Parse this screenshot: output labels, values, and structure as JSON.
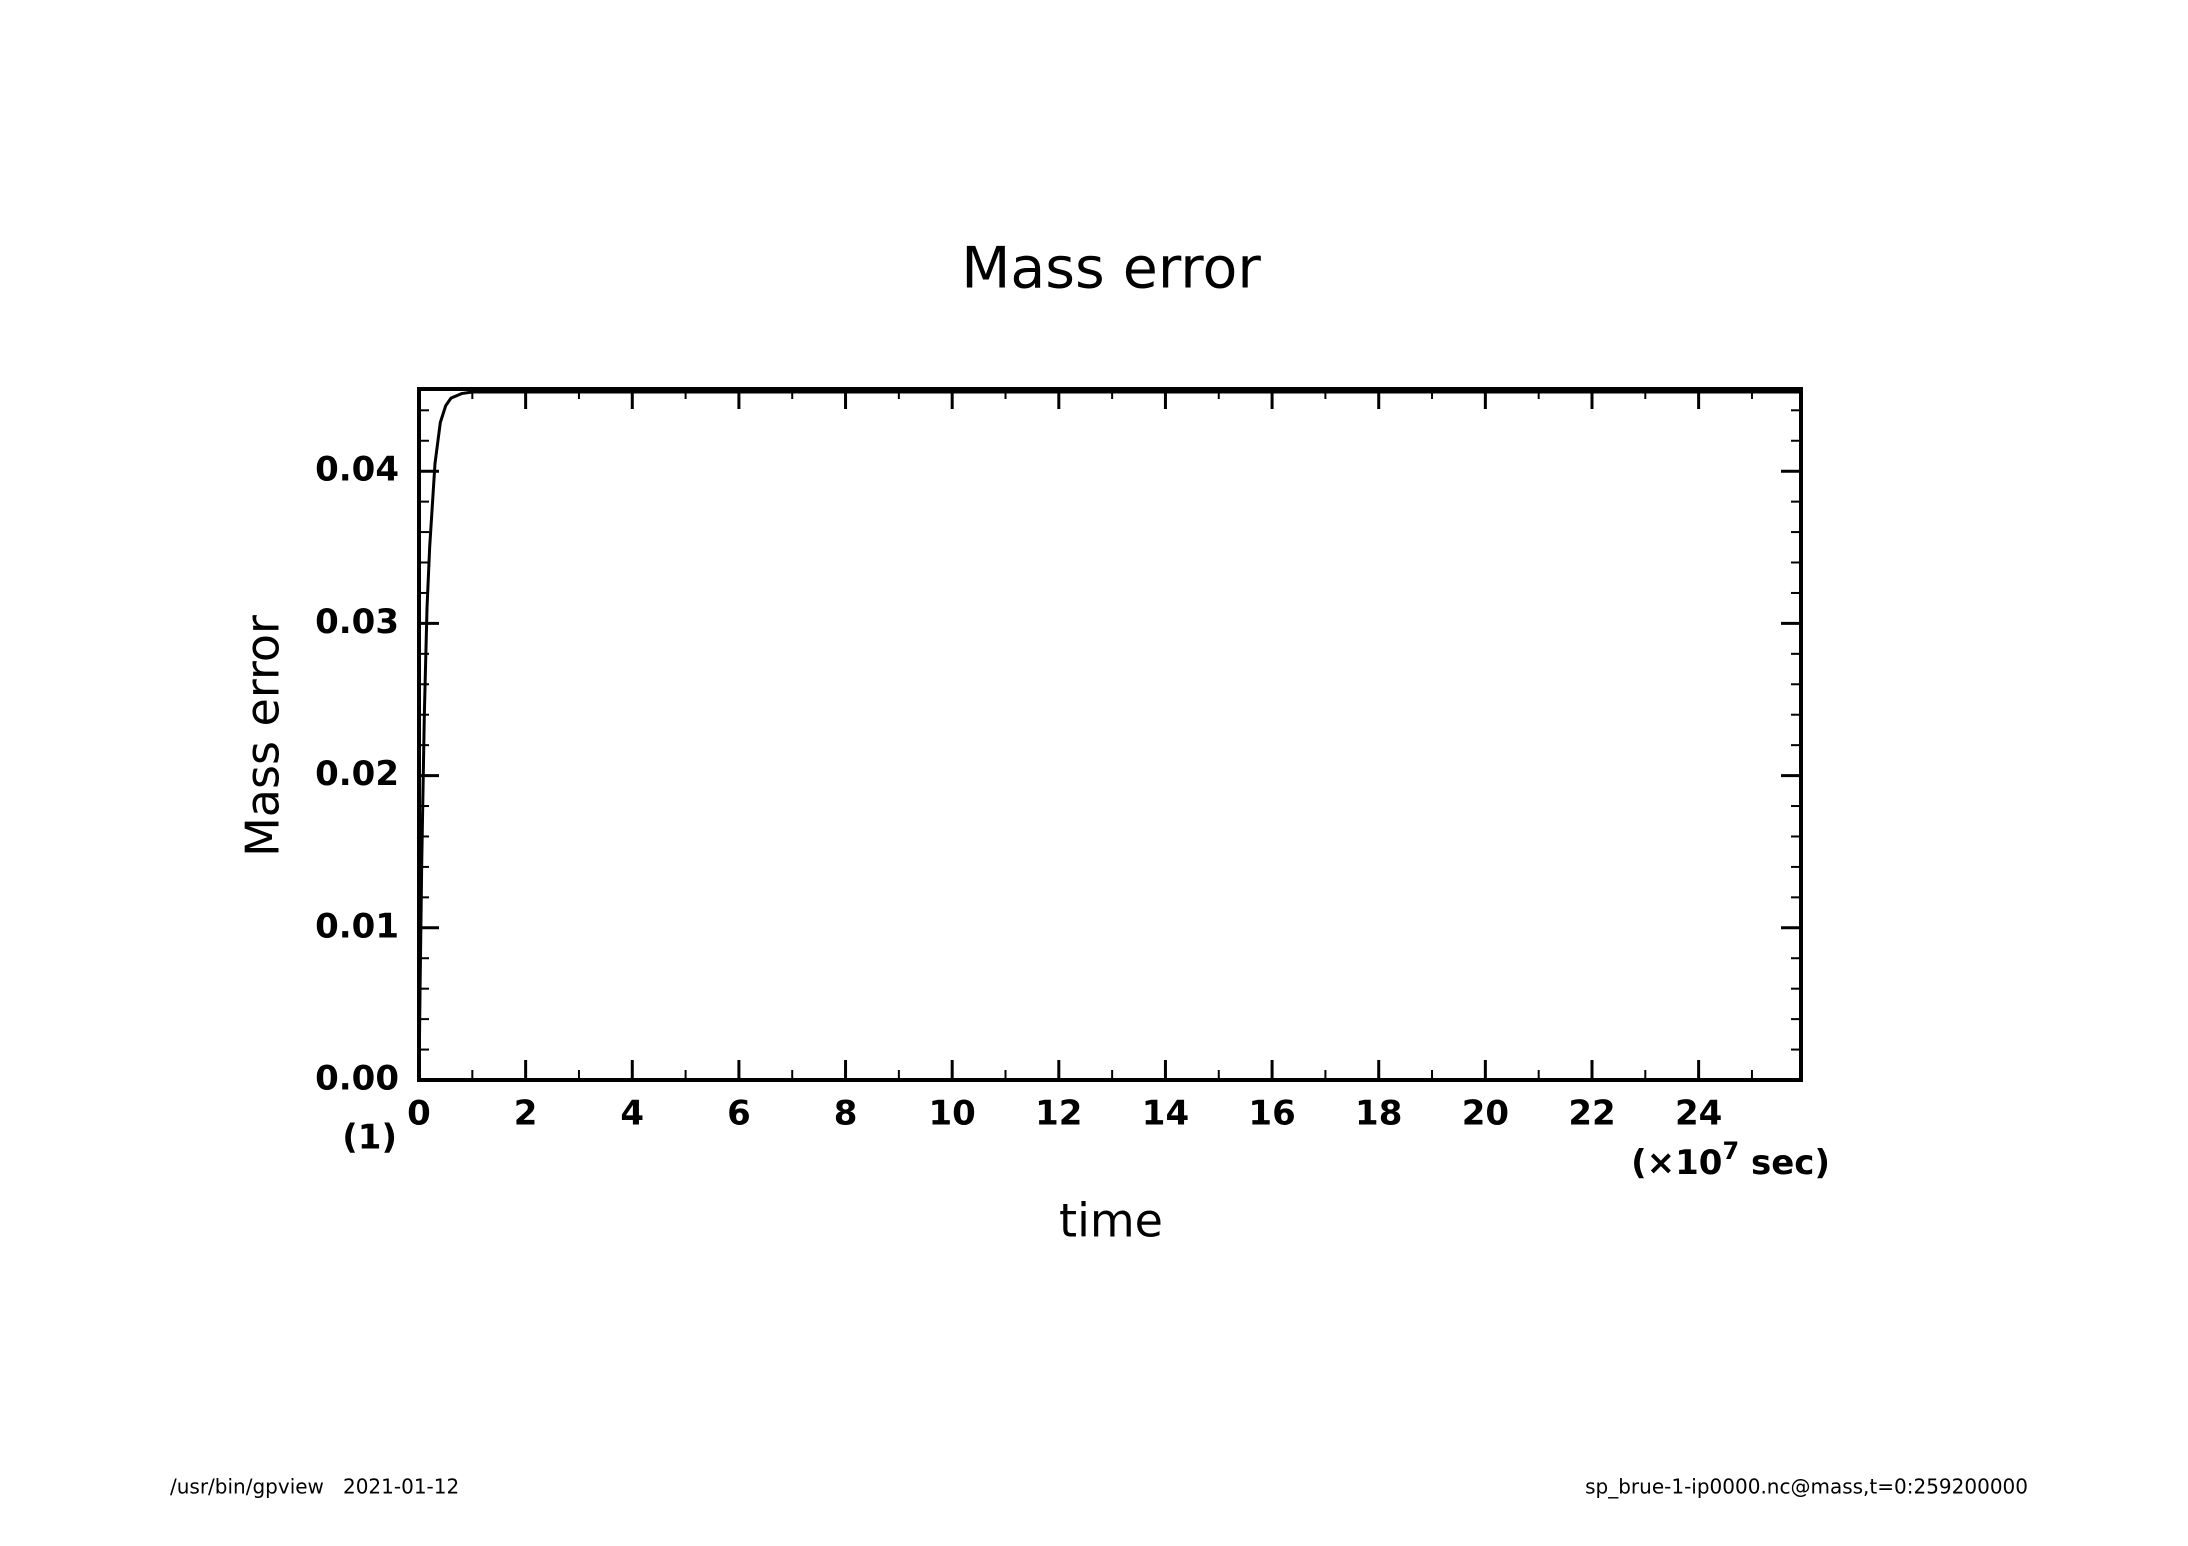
{
  "chart_data": {
    "type": "line",
    "title": "Mass error",
    "xlabel": "time",
    "ylabel": "Mass error",
    "y_unit": "(1)",
    "x_unit": {
      "prefix": "(×10",
      "exponent": "7",
      "suffix": " sec)"
    },
    "footer_left": "/usr/bin/gpview   2021-01-12",
    "footer_right": "sp_brue-1-ip0000.nc@mass,t=0:259200000",
    "x": [
      0,
      0.02,
      0.05,
      0.1,
      0.15,
      0.2,
      0.3,
      0.4,
      0.5,
      0.6,
      0.8,
      1,
      2,
      5,
      10,
      15,
      20,
      25.92
    ],
    "values": [
      0,
      0.006,
      0.014,
      0.024,
      0.031,
      0.035,
      0.0405,
      0.0432,
      0.0443,
      0.0448,
      0.0451,
      0.0452,
      0.0452,
      0.0452,
      0.0452,
      0.0452,
      0.0452,
      0.0452
    ],
    "color": "#000000",
    "xlim": [
      0,
      25.92
    ],
    "ylim": [
      0,
      0.0454
    ],
    "xticks": [
      0,
      2,
      4,
      6,
      8,
      10,
      12,
      14,
      16,
      18,
      20,
      22,
      24
    ],
    "yticks": [
      {
        "value": 0,
        "label": "0.00"
      },
      {
        "value": 0.01,
        "label": "0.01"
      },
      {
        "value": 0.02,
        "label": "0.02"
      },
      {
        "value": 0.03,
        "label": "0.03"
      },
      {
        "value": 0.04,
        "label": "0.04"
      }
    ],
    "xminor": 1,
    "yminor": 0.002,
    "grid": false
  }
}
